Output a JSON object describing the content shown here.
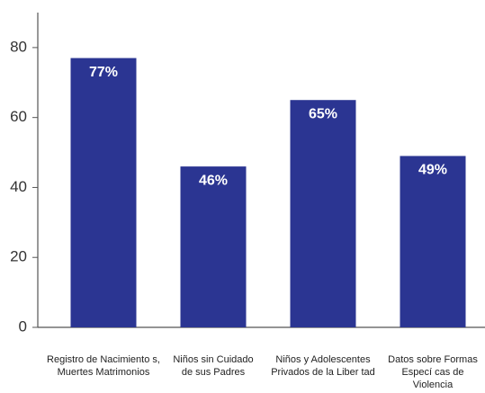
{
  "chart_data": {
    "type": "bar",
    "categories": [
      [
        "Registro de Nacimiento s,",
        "Muertes Matrimonios"
      ],
      [
        "Niños sin Cuidado",
        "de sus Padres"
      ],
      [
        "Niños y Adolescentes",
        "Privados de la Liber tad"
      ],
      [
        "Datos sobre Formas",
        "Especí cas de",
        "Violencia"
      ]
    ],
    "values": [
      77,
      46,
      65,
      49
    ],
    "value_labels": [
      "77%",
      "46%",
      "65%",
      "49%"
    ],
    "color": "#2b3592",
    "ylim": [
      0,
      90
    ],
    "yticks": [
      0,
      20,
      40,
      60,
      80
    ],
    "grid": false
  }
}
